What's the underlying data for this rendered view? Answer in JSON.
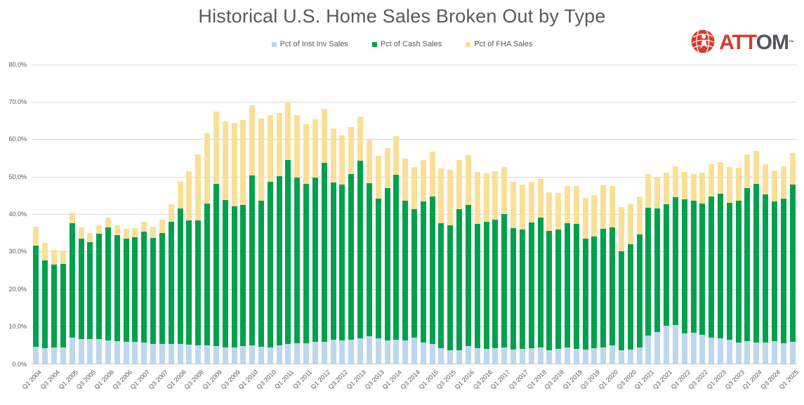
{
  "title": "Historical U.S. Home Sales Broken Out by Type",
  "logo": {
    "text_red": "ATT",
    "text_gray": "OM",
    "tm": "TM",
    "icon_color": "#d7392d"
  },
  "colors": {
    "inst_inv": "#bdd7ee",
    "cash": "#00a14d",
    "fha": "#fae096",
    "gridline": "#d9d9d9",
    "axis_text": "#595959",
    "title_text": "#595959"
  },
  "legend": [
    {
      "label": "Pct of Inst Inv Sales",
      "color": "#bdd7ee"
    },
    {
      "label": "Pct of Cash Sales",
      "color": "#00a14d"
    },
    {
      "label": "Pct of FHA Sales",
      "color": "#fae096"
    }
  ],
  "chart_data": {
    "type": "bar",
    "stacked": true,
    "title": "Historical U.S. Home Sales Broken Out by Type",
    "xlabel": "",
    "ylabel": "",
    "ylim": [
      0,
      80
    ],
    "grid": true,
    "legend_position": "top",
    "y_ticks": [
      "0.0%",
      "10.0%",
      "20.0%",
      "30.0%",
      "40.0%",
      "50.0%",
      "60.0%",
      "70.0%",
      "80.0%"
    ],
    "x_tick_labels_every": 2,
    "categories": [
      "Q1 2004",
      "Q2 2004",
      "Q3 2004",
      "Q4 2004",
      "Q1 2005",
      "Q2 2005",
      "Q3 2005",
      "Q4 2005",
      "Q1 2006",
      "Q2 2006",
      "Q3 2006",
      "Q4 2006",
      "Q1 2007",
      "Q2 2007",
      "Q3 2007",
      "Q4 2007",
      "Q1 2008",
      "Q2 2008",
      "Q3 2008",
      "Q4 2008",
      "Q1 2009",
      "Q2 2009",
      "Q3 2009",
      "Q4 2009",
      "Q1 2010",
      "Q2 2010",
      "Q3 2010",
      "Q4 2010",
      "Q1 2011",
      "Q2 2011",
      "Q3 2011",
      "Q4 2011",
      "Q1 2012",
      "Q2 2012",
      "Q3 2012",
      "Q4 2012",
      "Q1 2013",
      "Q2 2013",
      "Q3 2013",
      "Q4 2013",
      "Q1 2014",
      "Q2 2014",
      "Q3 2014",
      "Q4 2014",
      "Q1 2015",
      "Q2 2015",
      "Q3 2015",
      "Q4 2015",
      "Q1 2016",
      "Q2 2016",
      "Q3 2016",
      "Q4 2016",
      "Q1 2017",
      "Q2 2017",
      "Q3 2017",
      "Q4 2017",
      "Q1 2018",
      "Q2 2018",
      "Q3 2018",
      "Q4 2018",
      "Q1 2019",
      "Q2 2019",
      "Q3 2019",
      "Q4 2019",
      "Q1 2020",
      "Q2 2020",
      "Q3 2020",
      "Q4 2020",
      "Q1 2021",
      "Q2 2021",
      "Q3 2021",
      "Q4 2021",
      "Q1 2022",
      "Q2 2022",
      "Q3 2022",
      "Q4 2022",
      "Q1 2023",
      "Q2 2023",
      "Q3 2023",
      "Q4 2023",
      "Q1 2024",
      "Q2 2024",
      "Q3 2024",
      "Q4 2024",
      "Q1 2025"
    ],
    "series": [
      {
        "name": "Pct of Inst Inv Sales",
        "color": "#bdd7ee",
        "values": [
          4.5,
          4.2,
          4.3,
          4.3,
          6.9,
          6.6,
          6.5,
          6.6,
          6.1,
          6.0,
          5.9,
          5.9,
          5.6,
          5.3,
          5.3,
          5.2,
          5.2,
          5.0,
          4.9,
          4.8,
          4.6,
          4.4,
          4.4,
          4.7,
          4.9,
          4.5,
          4.3,
          4.9,
          5.2,
          5.5,
          5.5,
          5.9,
          5.9,
          6.3,
          6.1,
          6.4,
          6.7,
          7.3,
          6.7,
          6.1,
          6.4,
          6.1,
          7.0,
          5.7,
          5.2,
          4.2,
          3.5,
          3.6,
          4.7,
          4.1,
          3.9,
          4.2,
          4.4,
          3.8,
          3.9,
          4.2,
          4.3,
          3.6,
          4.0,
          4.4,
          3.9,
          3.8,
          4.1,
          4.3,
          4.8,
          3.6,
          3.7,
          4.4,
          7.5,
          8.5,
          10.1,
          10.4,
          8.0,
          8.2,
          7.6,
          7.0,
          6.7,
          6.3,
          5.7,
          6.0,
          5.7,
          5.6,
          6.0,
          5.4,
          5.9
        ]
      },
      {
        "name": "Pct of Cash Sales",
        "color": "#00a14d",
        "values": [
          27.0,
          23.4,
          22.2,
          22.3,
          30.5,
          26.8,
          26.0,
          28.1,
          30.2,
          28.2,
          27.4,
          27.9,
          29.7,
          28.3,
          29.5,
          32.6,
          36.3,
          33.2,
          33.3,
          38.0,
          43.3,
          39.3,
          37.5,
          37.6,
          45.3,
          38.9,
          44.2,
          45.1,
          49.2,
          44.2,
          42.4,
          43.8,
          47.7,
          42.0,
          41.6,
          44.1,
          47.4,
          40.8,
          37.4,
          40.7,
          44.0,
          37.4,
          34.2,
          37.6,
          39.4,
          33.2,
          33.4,
          37.6,
          37.7,
          33.1,
          34.0,
          34.3,
          35.5,
          32.4,
          31.8,
          33.5,
          34.7,
          31.8,
          31.8,
          33.0,
          33.3,
          29.6,
          29.9,
          31.7,
          31.5,
          26.4,
          28.1,
          30.0,
          34.1,
          33.0,
          32.5,
          34.0,
          35.8,
          35.3,
          35.2,
          37.5,
          38.7,
          36.7,
          37.8,
          40.9,
          42.3,
          39.6,
          37.3,
          38.6,
          41.9
        ]
      },
      {
        "name": "Pct of FHA Sales",
        "color": "#fae096",
        "values": [
          5.1,
          4.6,
          3.9,
          3.6,
          2.9,
          2.9,
          2.3,
          2.2,
          2.6,
          2.8,
          2.6,
          2.3,
          2.6,
          3.0,
          3.6,
          4.7,
          7.2,
          13.1,
          17.7,
          18.7,
          19.3,
          20.9,
          22.4,
          22.8,
          18.8,
          21.9,
          17.9,
          16.8,
          15.4,
          16.6,
          15.9,
          15.5,
          14.5,
          14.4,
          13.2,
          12.7,
          11.8,
          11.8,
          11.4,
          10.7,
          10.4,
          11.2,
          11.2,
          11.0,
          12.0,
          14.7,
          14.9,
          13.2,
          13.3,
          13.9,
          12.9,
          12.8,
          12.6,
          12.4,
          12.0,
          10.9,
          10.3,
          10.3,
          9.7,
          10.0,
          10.2,
          10.9,
          11.0,
          11.5,
          11.1,
          11.8,
          10.7,
          10.2,
          9.0,
          8.1,
          8.4,
          8.3,
          7.3,
          7.0,
          8.2,
          8.8,
          8.4,
          9.5,
          8.7,
          9.0,
          8.8,
          8.1,
          8.3,
          8.7,
          8.4
        ]
      }
    ]
  }
}
